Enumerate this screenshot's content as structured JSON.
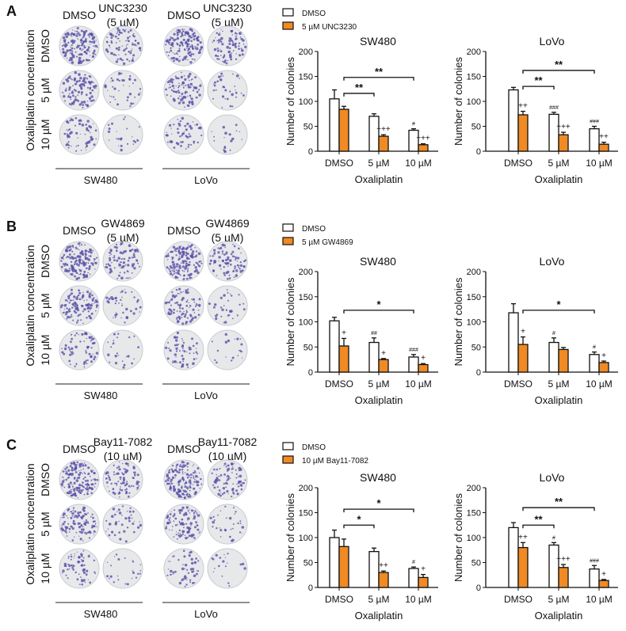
{
  "colors": {
    "control": "#ffffff",
    "treatment": "#f08a24",
    "plate_bg": "#e6e8ea",
    "colony": "#5a4fa8",
    "stroke": "#111111"
  },
  "panels": [
    {
      "letter": "A",
      "col_headers": [
        [
          "DMSO"
        ],
        [
          "UNC3230",
          "(5 µM)"
        ],
        [
          "DMSO"
        ],
        [
          "UNC3230",
          "(5 µM)"
        ]
      ],
      "row_labels": [
        "DMSO",
        "5 µM",
        "10 µM"
      ],
      "y_label": "Oxaliplatin concentration",
      "cell_lines": [
        "SW480",
        "LoVo"
      ],
      "legend": [
        "DMSO",
        "5 µM UNC3230"
      ]
    },
    {
      "letter": "B",
      "col_headers": [
        [
          "DMSO"
        ],
        [
          "GW4869",
          "(5 µM)"
        ],
        [
          "DMSO"
        ],
        [
          "GW4869",
          "(5 µM)"
        ]
      ],
      "row_labels": [
        "DMSO",
        "5 µM",
        "10 µM"
      ],
      "y_label": "Oxaliplatin concentration",
      "cell_lines": [
        "SW480",
        "LoVo"
      ],
      "legend": [
        "DMSO",
        "5 µM GW4869"
      ]
    },
    {
      "letter": "C",
      "col_headers": [
        [
          "DMSO"
        ],
        [
          "Bay11-7082",
          "(10 µM)"
        ],
        [
          "DMSO"
        ],
        [
          "Bay11-7082",
          "(10 µM)"
        ]
      ],
      "row_labels": [
        "DMSO",
        "5 µM",
        "10 µM"
      ],
      "y_label": "Oxaliplatin concentration",
      "cell_lines": [
        "SW480",
        "LoVo"
      ],
      "legend": [
        "DMSO",
        "10 µM Bay11-7082"
      ]
    }
  ],
  "chart_data": [
    {
      "type": "bar",
      "panel": "A",
      "title": "SW480",
      "xlabel": "Oxaliplatin",
      "ylabel": "Number of colonies",
      "ylim": [
        0,
        200
      ],
      "yticks": [
        0,
        50,
        100,
        150,
        200
      ],
      "categories": [
        "DMSO",
        "5 µM",
        "10 µM"
      ],
      "series": [
        {
          "name": "DMSO",
          "values": [
            105,
            70,
            42
          ],
          "errors": [
            18,
            5,
            3
          ],
          "marks": [
            "",
            "",
            "#"
          ]
        },
        {
          "name": "5 µM UNC3230",
          "values": [
            84,
            30,
            13
          ],
          "errors": [
            6,
            3,
            2
          ],
          "marks": [
            "",
            "+++",
            "+++"
          ]
        }
      ],
      "brackets": [
        {
          "from": 0,
          "to": 1,
          "label": "**",
          "level": 116
        },
        {
          "from": 0,
          "to": 2,
          "label": "**",
          "level": 148
        }
      ]
    },
    {
      "type": "bar",
      "panel": "A",
      "title": "LoVo",
      "xlabel": "Oxaliplatin",
      "ylabel": "Number of colonies",
      "ylim": [
        0,
        200
      ],
      "yticks": [
        0,
        50,
        100,
        150,
        200
      ],
      "categories": [
        "DMSO",
        "5 µM",
        "10 µM"
      ],
      "series": [
        {
          "name": "DMSO",
          "values": [
            123,
            74,
            45
          ],
          "errors": [
            5,
            4,
            5
          ],
          "marks": [
            "",
            "###",
            "###"
          ]
        },
        {
          "name": "5 µM UNC3230",
          "values": [
            73,
            33,
            14
          ],
          "errors": [
            7,
            5,
            4
          ],
          "marks": [
            "++",
            "+++",
            "++"
          ]
        }
      ],
      "brackets": [
        {
          "from": 0,
          "to": 1,
          "label": "**",
          "level": 130
        },
        {
          "from": 0,
          "to": 2,
          "label": "**",
          "level": 162
        }
      ]
    },
    {
      "type": "bar",
      "panel": "B",
      "title": "SW480",
      "xlabel": "Oxaliplatin",
      "ylabel": "Number of colonies",
      "ylim": [
        0,
        200
      ],
      "yticks": [
        0,
        50,
        100,
        150,
        200
      ],
      "categories": [
        "DMSO",
        "5 µM",
        "10 µM"
      ],
      "series": [
        {
          "name": "DMSO",
          "values": [
            102,
            59,
            30
          ],
          "errors": [
            7,
            9,
            5
          ],
          "marks": [
            "",
            "##",
            "###"
          ]
        },
        {
          "name": "5 µM GW4869",
          "values": [
            52,
            25,
            15
          ],
          "errors": [
            15,
            2,
            2
          ],
          "marks": [
            "+",
            "+",
            "+"
          ]
        }
      ],
      "brackets": [
        {
          "from": 0,
          "to": 2,
          "label": "*",
          "level": 123
        }
      ]
    },
    {
      "type": "bar",
      "panel": "B",
      "title": "LoVo",
      "xlabel": "Oxaliplatin",
      "ylabel": "Number of colonies",
      "ylim": [
        0,
        200
      ],
      "yticks": [
        0,
        50,
        100,
        150,
        200
      ],
      "categories": [
        "DMSO",
        "5 µM",
        "10 µM"
      ],
      "series": [
        {
          "name": "DMSO",
          "values": [
            118,
            59,
            35
          ],
          "errors": [
            18,
            9,
            5
          ],
          "marks": [
            "",
            "#",
            "#"
          ]
        },
        {
          "name": "5 µM GW4869",
          "values": [
            55,
            45,
            19
          ],
          "errors": [
            15,
            4,
            3
          ],
          "marks": [
            "+",
            "",
            "+"
          ]
        }
      ],
      "brackets": [
        {
          "from": 0,
          "to": 2,
          "label": "*",
          "level": 123
        }
      ]
    },
    {
      "type": "bar",
      "panel": "C",
      "title": "SW480",
      "xlabel": "Oxaliplatin",
      "ylabel": "Number of colonies",
      "ylim": [
        0,
        200
      ],
      "yticks": [
        0,
        50,
        100,
        150,
        200
      ],
      "categories": [
        "DMSO",
        "5 µM",
        "10 µM"
      ],
      "series": [
        {
          "name": "DMSO",
          "values": [
            100,
            72,
            38
          ],
          "errors": [
            15,
            7,
            3
          ],
          "marks": [
            "",
            "",
            "#"
          ]
        },
        {
          "name": "10 µM Bay11-7082",
          "values": [
            82,
            30,
            20
          ],
          "errors": [
            15,
            3,
            6
          ],
          "marks": [
            "",
            "++",
            "+"
          ]
        }
      ],
      "brackets": [
        {
          "from": 0,
          "to": 1,
          "label": "*",
          "level": 125
        },
        {
          "from": 0,
          "to": 2,
          "label": "*",
          "level": 157
        }
      ]
    },
    {
      "type": "bar",
      "panel": "C",
      "title": "LoVo",
      "xlabel": "Oxaliplatin",
      "ylabel": "Number of colonies",
      "ylim": [
        0,
        200
      ],
      "yticks": [
        0,
        50,
        100,
        150,
        200
      ],
      "categories": [
        "DMSO",
        "5 µM",
        "10 µM"
      ],
      "series": [
        {
          "name": "DMSO",
          "values": [
            120,
            85,
            37
          ],
          "errors": [
            10,
            5,
            7
          ],
          "marks": [
            "",
            "#",
            "###"
          ]
        },
        {
          "name": "10 µM Bay11-7082",
          "values": [
            80,
            40,
            14
          ],
          "errors": [
            10,
            6,
            2
          ],
          "marks": [
            "++",
            "+++",
            "+"
          ]
        }
      ],
      "brackets": [
        {
          "from": 0,
          "to": 1,
          "label": "**",
          "level": 125
        },
        {
          "from": 0,
          "to": 2,
          "label": "**",
          "level": 160
        }
      ]
    }
  ]
}
